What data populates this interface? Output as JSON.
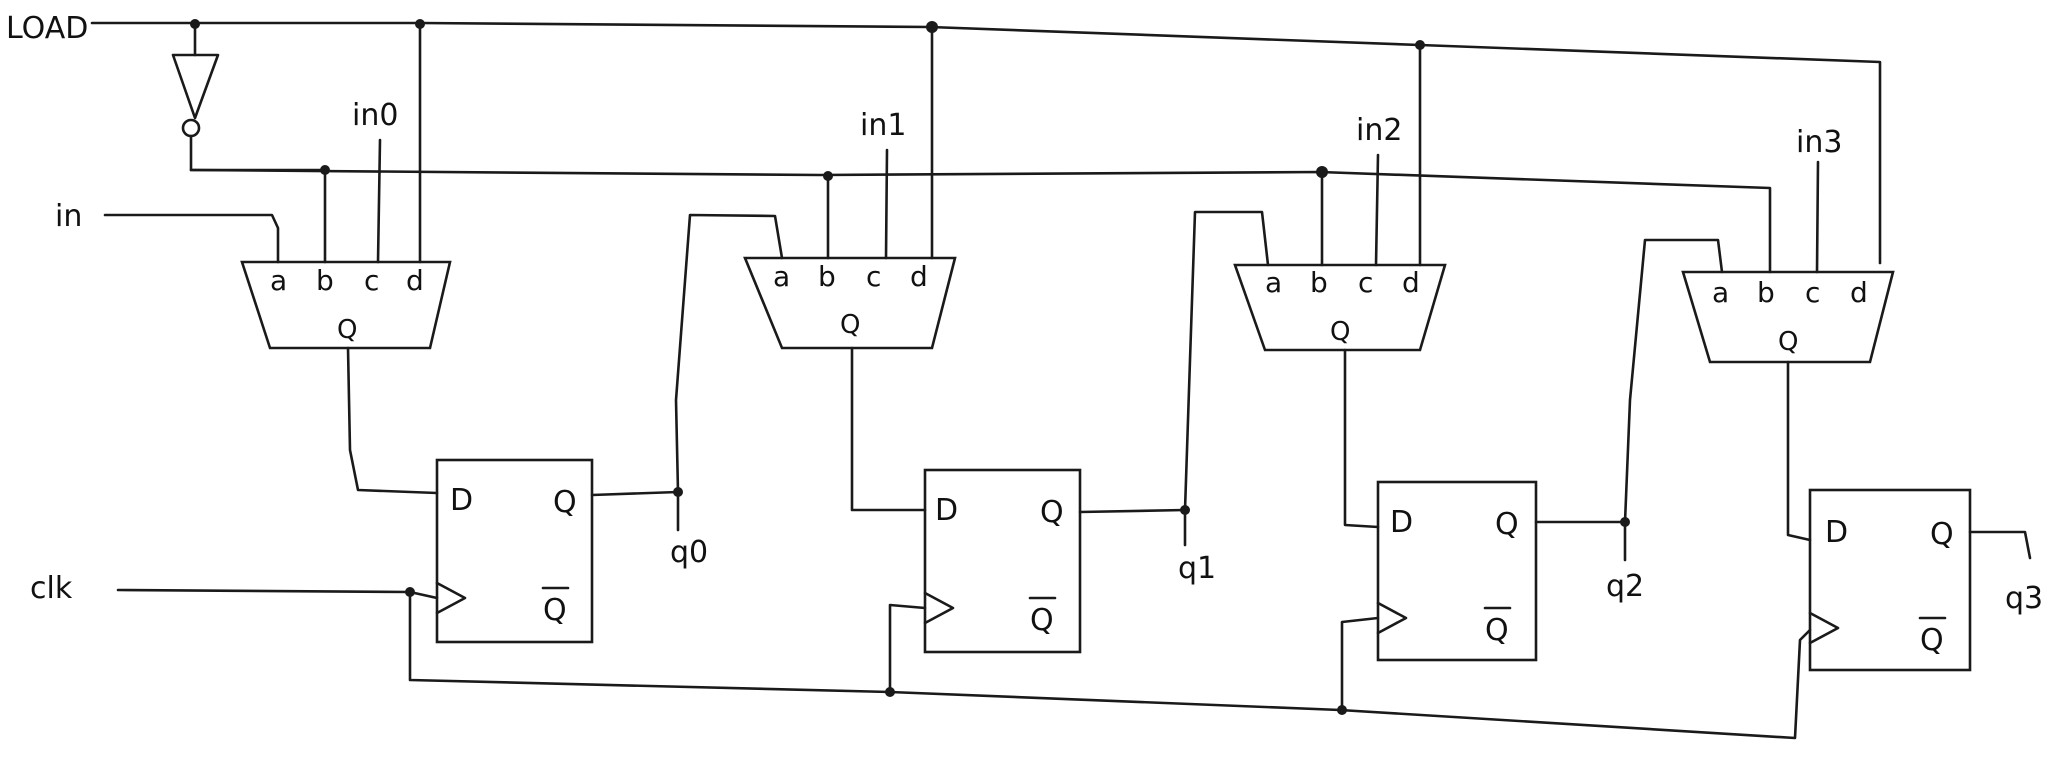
{
  "signals": {
    "load": "LOAD",
    "in": "in",
    "clk": "clk"
  },
  "inputs": [
    "in0",
    "in1",
    "in2",
    "in3"
  ],
  "outputs": [
    "q0",
    "q1",
    "q2",
    "q3"
  ],
  "mux_pins": [
    "a",
    "b",
    "c",
    "d"
  ],
  "mux_out": "Q",
  "ff_pins": {
    "d": "D",
    "q": "Q",
    "qbar": "Q"
  }
}
